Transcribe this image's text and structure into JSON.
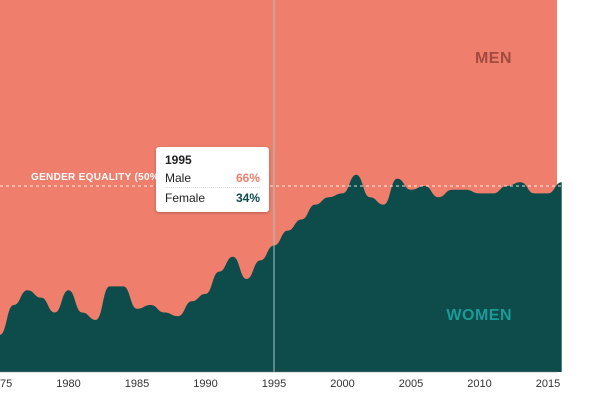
{
  "colors": {
    "men": "#ef7f6c",
    "women": "#0e4b4b",
    "men_label": "#a24a40",
    "women_label": "#1a9b97",
    "guide": "#a9c4c4",
    "male_value": "#ef7f6c",
    "female_value": "#0e4b4b"
  },
  "labels": {
    "men": "MEN",
    "women": "WOMEN",
    "equality": "GENDER EQUALITY (50%)"
  },
  "tooltip": {
    "year": "1995",
    "male_label": "Male",
    "male_value": "66%",
    "female_label": "Female",
    "female_value": "34%"
  },
  "chart_data": {
    "type": "area",
    "x": [
      1975,
      1976,
      1977,
      1978,
      1979,
      1980,
      1981,
      1982,
      1983,
      1984,
      1985,
      1986,
      1987,
      1988,
      1989,
      1990,
      1991,
      1992,
      1993,
      1994,
      1995,
      1996,
      1997,
      1998,
      1999,
      2000,
      2001,
      2002,
      2003,
      2004,
      2005,
      2006,
      2007,
      2008,
      2009,
      2010,
      2011,
      2012,
      2013,
      2014,
      2015,
      2016
    ],
    "series": [
      {
        "name": "Female",
        "values": [
          10,
          18,
          22,
          20,
          16,
          22,
          16,
          14,
          23,
          23,
          17,
          18,
          16,
          15,
          19,
          21,
          27,
          31,
          25,
          30,
          34,
          38,
          41,
          45,
          47,
          48,
          53,
          47,
          45,
          52,
          49,
          50,
          47,
          49,
          49,
          48,
          48,
          50,
          51,
          48,
          48,
          51
        ]
      },
      {
        "name": "Male",
        "values": [
          90,
          82,
          78,
          80,
          84,
          78,
          84,
          86,
          77,
          77,
          83,
          82,
          84,
          85,
          81,
          79,
          73,
          69,
          75,
          70,
          66,
          62,
          59,
          55,
          53,
          52,
          47,
          53,
          55,
          48,
          51,
          50,
          53,
          51,
          51,
          52,
          52,
          50,
          49,
          52,
          52,
          49
        ]
      }
    ],
    "x_ticks": [
      "75",
      "1980",
      "1985",
      "1990",
      "1995",
      "2000",
      "2005",
      "2010",
      "2015"
    ],
    "ylim": [
      0,
      100
    ],
    "reference_line": 50,
    "highlight_x": 1995
  }
}
